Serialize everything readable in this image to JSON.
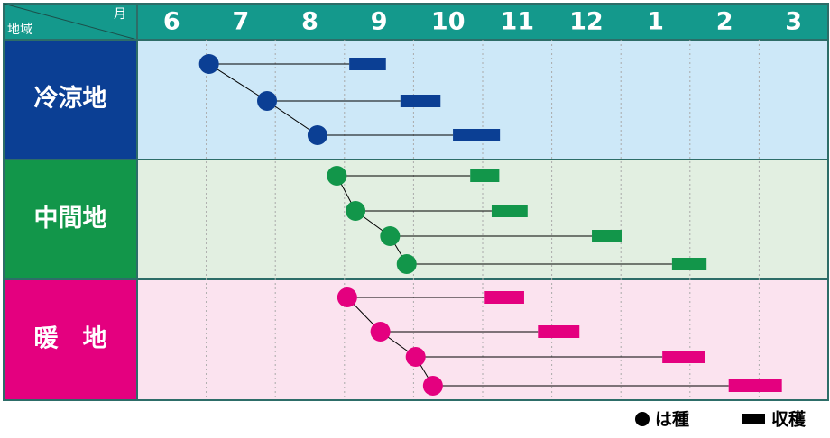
{
  "chart_data": {
    "type": "gantt",
    "header": {
      "month_label": "月",
      "region_label": "地域"
    },
    "categories": [
      "6",
      "7",
      "8",
      "9",
      "10",
      "11",
      "12",
      "1",
      "2",
      "3"
    ],
    "xlim": [
      0,
      10
    ],
    "xticks": [
      1,
      2,
      3,
      4,
      5,
      6,
      7,
      8,
      9
    ],
    "regions": [
      {
        "name": "冷涼地",
        "color": "#0b3f94",
        "rows": [
          {
            "sow": 1.04,
            "harvest": [
              3.07,
              3.6
            ]
          },
          {
            "sow": 1.88,
            "harvest": [
              3.81,
              4.39
            ]
          },
          {
            "sow": 2.61,
            "harvest": [
              4.57,
              5.25
            ]
          }
        ]
      },
      {
        "name": "中間地",
        "color": "#12964a",
        "rows": [
          {
            "sow": 2.89,
            "harvest": [
              4.82,
              5.24
            ]
          },
          {
            "sow": 3.16,
            "harvest": [
              5.13,
              5.65
            ]
          },
          {
            "sow": 3.66,
            "harvest": [
              6.58,
              7.02
            ]
          },
          {
            "sow": 3.9,
            "harvest": [
              7.74,
              8.24
            ]
          }
        ]
      },
      {
        "name": "暖　地",
        "color": "#e4007f",
        "rows": [
          {
            "sow": 3.04,
            "harvest": [
              5.03,
              5.6
            ]
          },
          {
            "sow": 3.52,
            "harvest": [
              5.8,
              6.4
            ]
          },
          {
            "sow": 4.03,
            "harvest": [
              7.6,
              8.22
            ]
          },
          {
            "sow": 4.28,
            "harvest": [
              8.56,
              9.33
            ]
          }
        ]
      }
    ],
    "legend": {
      "sow": "は種",
      "harvest": "収穫"
    }
  }
}
